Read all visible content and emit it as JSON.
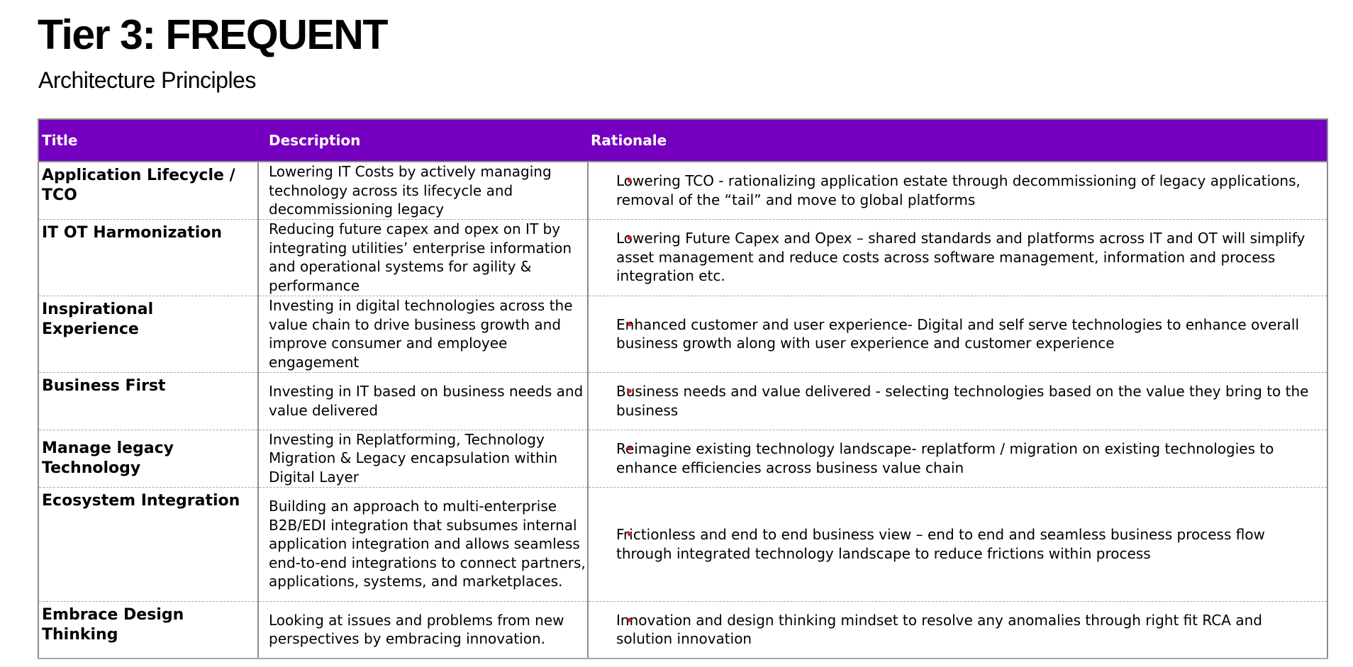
{
  "header": {
    "title": "Tier 3: FREQUENT",
    "subtitle": "Architecture Principles"
  },
  "table": {
    "columns": [
      "Title",
      "Description",
      "Rationale"
    ],
    "bullet_color": "#e0201f",
    "header_color": "#7500c0",
    "rows": [
      {
        "title": "Application Lifecycle / TCO",
        "description": "Lowering IT Costs by actively managing technology across its lifecycle and decommissioning legacy",
        "rationale": "Lowering TCO - rationalizing application estate through decommissioning of legacy applications, removal of the “tail” and move to global platforms"
      },
      {
        "title": "IT OT Harmonization",
        "description": "Reducing future capex and opex on IT by integrating utilities’ enterprise information and operational systems for agility & performance",
        "rationale": "Lowering Future Capex and Opex – shared standards and platforms across IT and OT will simplify asset management and reduce costs across software management, information and process integration etc."
      },
      {
        "title": "Inspirational Experience",
        "description": "Investing in digital technologies across the value chain to drive business growth and improve consumer and employee engagement",
        "rationale": "Enhanced customer and user experience- Digital and self serve technologies to enhance overall business growth along with user experience and customer experience"
      },
      {
        "title": "Business First",
        "description": "Investing in IT based on business needs and value delivered",
        "rationale": "Business needs and value delivered - selecting technologies based on the value they bring to the business"
      },
      {
        "title": "Manage legacy Technology",
        "description": "Investing in Replatforming, Technology Migration & Legacy encapsulation within Digital Layer",
        "rationale": "Reimagine existing technology landscape-  replatform / migration on existing technologies to enhance efficiencies across business value chain"
      },
      {
        "title": "Ecosystem Integration",
        "description": "Building an approach to multi-enterprise B2B/EDI integration that subsumes internal application integration and allows seamless end-to-end integrations to connect partners, applications, systems, and marketplaces.",
        "rationale": "Frictionless and end to end business view – end to end and seamless business process flow through integrated technology landscape to reduce frictions within process"
      },
      {
        "title": "Embrace Design Thinking",
        "description": "Looking at issues and problems from new perspectives by embracing innovation.",
        "rationale": "Innovation and design thinking mindset to resolve any anomalies through right fit RCA and solution innovation"
      }
    ]
  }
}
